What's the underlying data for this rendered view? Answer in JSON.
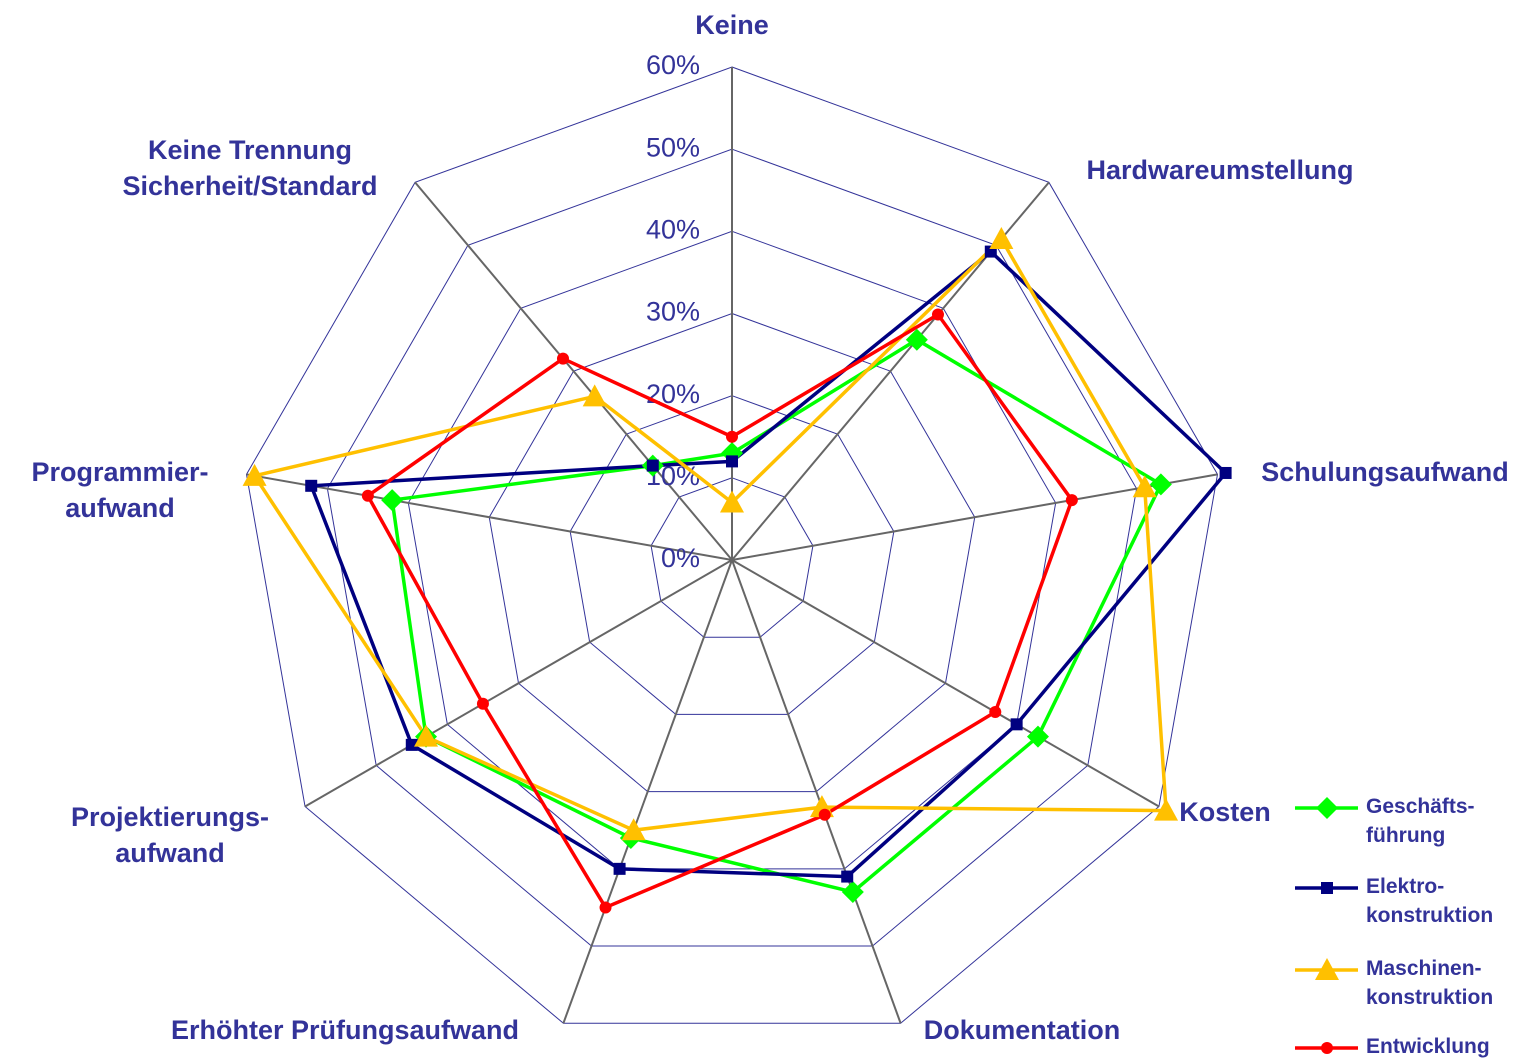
{
  "chart_data": {
    "type": "radar",
    "categories": [
      "Keine",
      "Hardwareumstellung",
      "Schulungsaufwand",
      "Kosten",
      "Dokumentation",
      "Erhöhter Prüfungsaufwand",
      "Projektierungs-\naufwand",
      "Programmier-\naufwand",
      "Keine Trennung\nSicherheit/Standard"
    ],
    "series": [
      {
        "name": "Geschäfts-\nführung",
        "color": "#00ff00",
        "marker": "diamond",
        "values": [
          13,
          35,
          53,
          43,
          43,
          36,
          43,
          42,
          15
        ]
      },
      {
        "name": "Elektro-\nkonstruktion",
        "color": "#000080",
        "marker": "square",
        "values": [
          12,
          49,
          61,
          40,
          41,
          40,
          45,
          52,
          15
        ]
      },
      {
        "name": "Maschinen-\nkonstruktion",
        "color": "#ffc000",
        "marker": "triangle",
        "values": [
          7,
          51,
          51,
          61,
          32,
          35,
          43,
          59,
          26
        ]
      },
      {
        "name": "Entwicklung",
        "color": "#ff0000",
        "marker": "circle",
        "values": [
          15,
          39,
          42,
          37,
          33,
          45,
          35,
          45,
          32
        ]
      }
    ],
    "ylim": [
      0,
      60
    ],
    "yticks": [
      {
        "value": 0,
        "label": "0%"
      },
      {
        "value": 10,
        "label": "10%"
      },
      {
        "value": 20,
        "label": "20%"
      },
      {
        "value": 30,
        "label": "30%"
      },
      {
        "value": 40,
        "label": "40%"
      },
      {
        "value": 50,
        "label": "50%"
      },
      {
        "value": 60,
        "label": "60%"
      }
    ],
    "legend": "bottom-right"
  }
}
